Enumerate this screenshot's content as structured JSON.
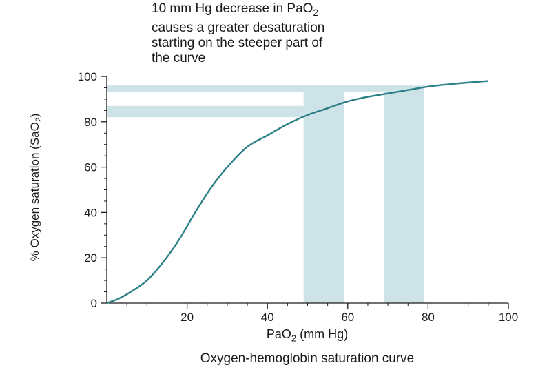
{
  "colors": {
    "curve": "#2a7f86",
    "band": "#cde3e8",
    "axis": "#1a1a1a",
    "text": "#1a1a1a"
  },
  "annotation": {
    "line1_prefix": "10 mm Hg decrease in PaO",
    "line1_sub": "2",
    "line2": "causes a greater desaturation",
    "line3": "starting on the steeper part of",
    "line4": "the curve"
  },
  "y_axis_label": {
    "prefix": "% Oxygen saturation (SaO",
    "sub": "2",
    "suffix": ")"
  },
  "x_axis_label": {
    "prefix": "PaO",
    "sub": "2",
    "suffix": " (mm Hg)"
  },
  "caption": "Oxygen-hemoglobin saturation curve",
  "chart_data": {
    "type": "line",
    "title": "Oxygen-hemoglobin saturation curve",
    "xlabel": "PaO2 (mm Hg)",
    "ylabel": "% Oxygen saturation (SaO2)",
    "xlim": [
      0,
      100
    ],
    "ylim": [
      0,
      100
    ],
    "x_ticks": [
      20,
      40,
      60,
      80,
      100
    ],
    "y_ticks": [
      0,
      20,
      40,
      60,
      80,
      100
    ],
    "grid": false,
    "series": [
      {
        "x": [
          0,
          3,
          6,
          10,
          14,
          18,
          22,
          26,
          30,
          35,
          40,
          45,
          50,
          55,
          60,
          65,
          70,
          75,
          80,
          85,
          90,
          95
        ],
        "y": [
          0,
          2,
          5,
          10,
          18,
          28,
          40,
          51,
          60,
          69,
          74,
          79,
          83,
          86,
          89,
          91,
          92.5,
          94,
          95.5,
          96.5,
          97.3,
          98
        ]
      }
    ],
    "vertical_bands": [
      {
        "x_from": 49,
        "x_to": 59
      },
      {
        "x_from": 69,
        "x_to": 79
      }
    ],
    "horizontal_bands": [
      {
        "y_from": 82,
        "y_to": 87,
        "x_to": 59
      },
      {
        "y_from": 93,
        "y_to": 96,
        "x_to": 79
      }
    ]
  }
}
